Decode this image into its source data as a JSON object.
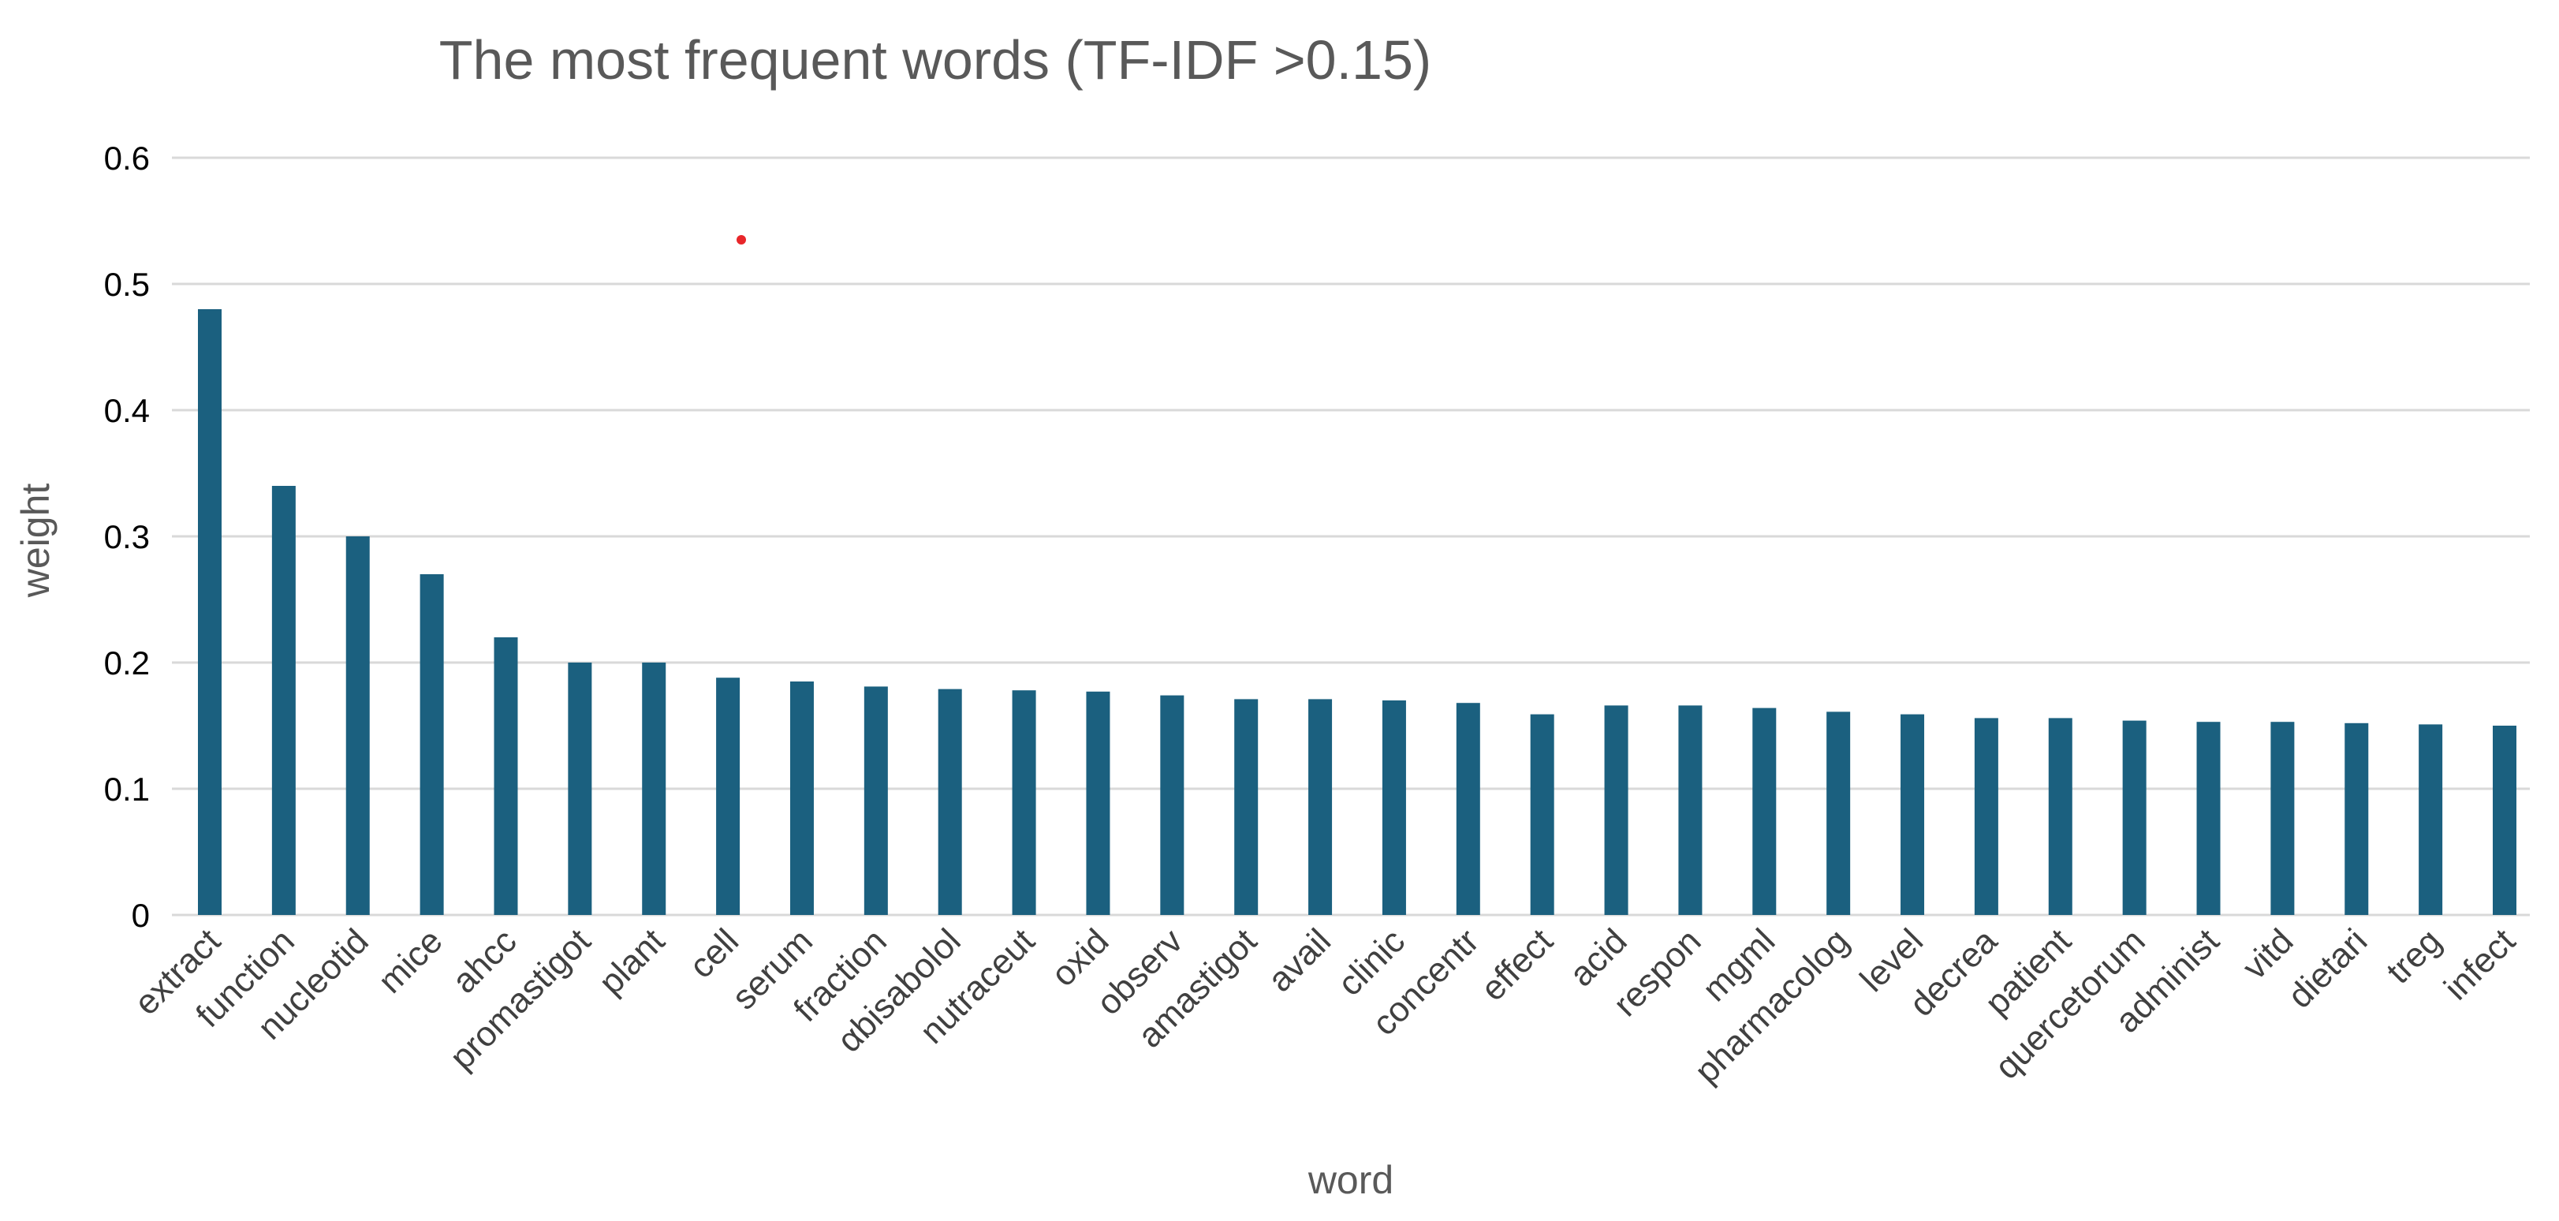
{
  "chart_data": {
    "type": "bar",
    "title": "The most frequent words (TF-IDF >0.15)",
    "xlabel": "word",
    "ylabel": "weight",
    "ylim": [
      0,
      0.6
    ],
    "yticks": [
      0,
      0.1,
      0.2,
      0.3,
      0.4,
      0.5,
      0.6
    ],
    "ytick_labels": [
      "0",
      "0.1",
      "0.2",
      "0.3",
      "0.4",
      "0.5",
      "0.6"
    ],
    "grid": true,
    "legend": "none",
    "categories": [
      "extract",
      "function",
      "nucleotid",
      "mice",
      "ahcc",
      "promastigot",
      "plant",
      "cell",
      "serum",
      "fraction",
      "αbisabolol",
      "nutraceut",
      "oxid",
      "observ",
      "amastigot",
      "avail",
      "clinic",
      "concentr",
      "effect",
      "acid",
      "respon",
      "mgml",
      "pharmacolog",
      "level",
      "decrea",
      "patient",
      "quercetorum",
      "administ",
      "vitd",
      "dietari",
      "treg",
      "infect"
    ],
    "values": [
      0.48,
      0.34,
      0.3,
      0.27,
      0.22,
      0.2,
      0.2,
      0.188,
      0.185,
      0.181,
      0.179,
      0.178,
      0.177,
      0.174,
      0.171,
      0.171,
      0.17,
      0.168,
      0.159,
      0.166,
      0.166,
      0.164,
      0.161,
      0.159,
      0.156,
      0.156,
      0.154,
      0.153,
      0.153,
      0.152,
      0.151,
      0.15
    ],
    "colors": {
      "bar": "#1b607f",
      "grid": "#d9d9d9",
      "title": "#595959",
      "axis_label": "#595959",
      "tick_label": "#000000",
      "category_label": "#404040",
      "marker": "#e8262a"
    }
  }
}
